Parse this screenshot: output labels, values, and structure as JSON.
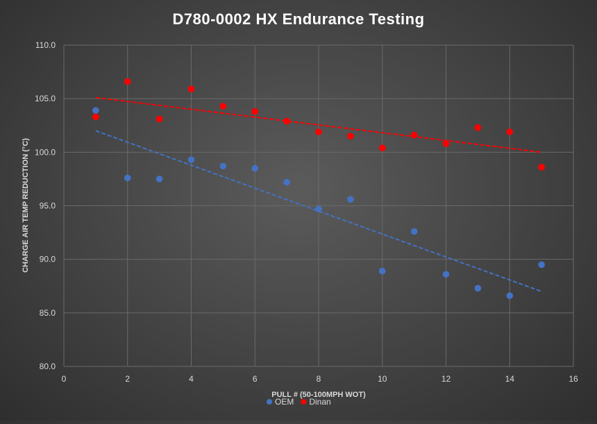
{
  "chart_data": {
    "type": "scatter",
    "title": "D780-0002 HX Endurance Testing",
    "xlabel": "PULL # (50-100MPH WOT)",
    "ylabel": "CHARGE AIR TEMP REDUCTION (°C)",
    "xlim": [
      0,
      16
    ],
    "ylim": [
      80,
      110
    ],
    "x_ticks": [
      "0",
      "2",
      "4",
      "6",
      "8",
      "10",
      "12",
      "14",
      "16"
    ],
    "y_ticks": [
      "80.0",
      "85.0",
      "90.0",
      "95.0",
      "100.0",
      "105.0",
      "110.0"
    ],
    "grid": true,
    "legend_position": "bottom",
    "series": [
      {
        "name": "OEM",
        "color": "#4472c4",
        "x": [
          1,
          2,
          3,
          4,
          5,
          6,
          7,
          8,
          9,
          10,
          11,
          12,
          13,
          14,
          15
        ],
        "y": [
          103.9,
          97.6,
          97.5,
          99.3,
          98.7,
          98.5,
          97.2,
          94.7,
          95.6,
          88.9,
          92.6,
          88.6,
          87.3,
          86.6,
          89.5
        ],
        "trendline": {
          "style": "dashed",
          "x": [
            1,
            15
          ],
          "y": [
            102.0,
            87.0
          ]
        }
      },
      {
        "name": "Dinan",
        "color": "#ff0000",
        "x": [
          1,
          2,
          3,
          4,
          5,
          6,
          7,
          8,
          9,
          10,
          11,
          12,
          13,
          14,
          15
        ],
        "y": [
          103.3,
          106.6,
          103.1,
          105.9,
          104.3,
          103.8,
          102.9,
          101.9,
          101.5,
          100.4,
          101.6,
          100.8,
          102.3,
          101.9,
          98.6
        ],
        "trendline": {
          "style": "dashed",
          "x": [
            1,
            15
          ],
          "y": [
            105.1,
            100.0
          ]
        }
      }
    ]
  }
}
